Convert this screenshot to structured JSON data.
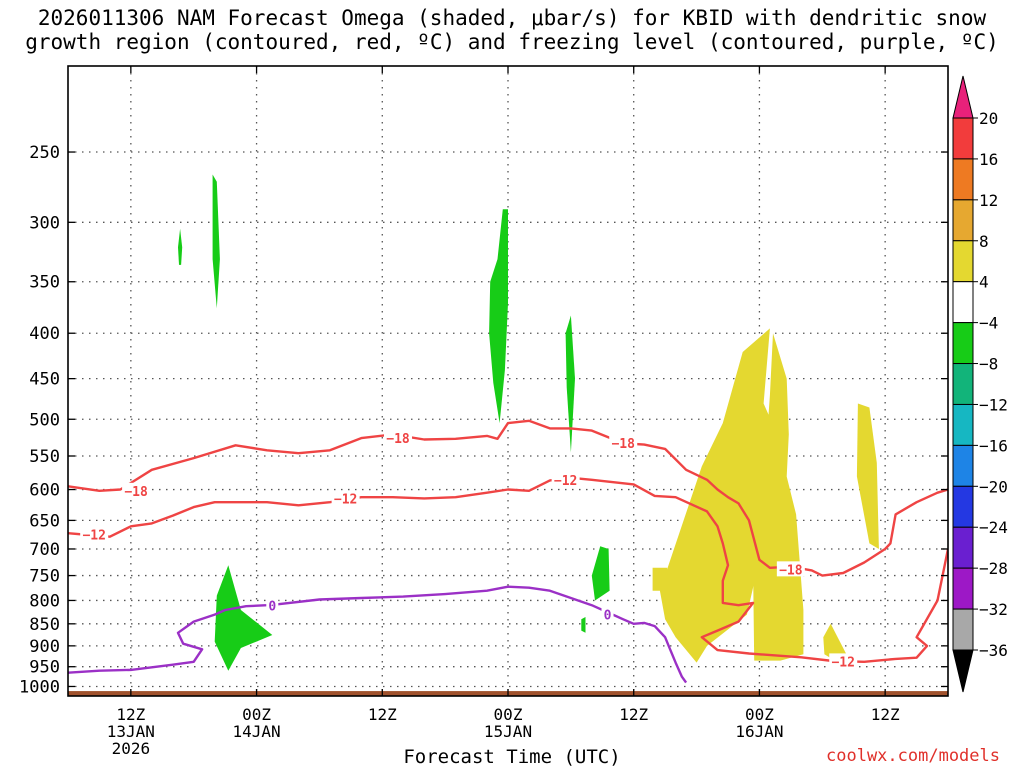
{
  "title": {
    "line1": "2026011306 NAM Forecast Omega (shaded, μbar/s) for KBID with dendritic snow",
    "line2": "growth region (contoured, red, ºC) and freezing level (contoured, purple, ºC)"
  },
  "credit": "coolwx.com/models",
  "chart_data": {
    "type": "time-height contour",
    "title": "2026011306 NAM Forecast Omega (shaded, μbar/s) for KBID with dendritic snow growth region (contoured, red, ºC) and freezing level (contoured, purple, ºC)",
    "xlabel": "Forecast Time (UTC)",
    "ylabel": "",
    "xlim": [
      0,
      84
    ],
    "ylim": [
      1025,
      200
    ],
    "y_scale": "log-pressure",
    "grid": true,
    "x_ticks": [
      {
        "hour": 6,
        "label": "12Z",
        "sub1": "13JAN",
        "sub2": "2026"
      },
      {
        "hour": 18,
        "label": "00Z",
        "sub1": "14JAN",
        "sub2": ""
      },
      {
        "hour": 30,
        "label": "12Z",
        "sub1": "",
        "sub2": ""
      },
      {
        "hour": 42,
        "label": "00Z",
        "sub1": "15JAN",
        "sub2": ""
      },
      {
        "hour": 54,
        "label": "12Z",
        "sub1": "",
        "sub2": ""
      },
      {
        "hour": 66,
        "label": "00Z",
        "sub1": "16JAN",
        "sub2": ""
      },
      {
        "hour": 78,
        "label": "12Z",
        "sub1": "",
        "sub2": ""
      }
    ],
    "y_ticks": [
      250,
      300,
      350,
      400,
      450,
      500,
      550,
      600,
      650,
      700,
      750,
      800,
      850,
      900,
      950,
      1000
    ],
    "colorbar": {
      "levels": [
        "20",
        "16",
        "12",
        "8",
        "4",
        "−4",
        "−8",
        "−12",
        "−16",
        "−20",
        "−24",
        "−28",
        "−32",
        "−36"
      ],
      "colors": [
        "#e8217a",
        "#f23c3c",
        "#ee7a22",
        "#e6a830",
        "#e4d830",
        "#ffffff",
        "#17cc17",
        "#12b47a",
        "#16b7c2",
        "#1e84e6",
        "#2438e2",
        "#6a1fd0",
        "#9d18c6",
        "#a8a8a8",
        "#000000"
      ]
    },
    "omega_regions": [
      {
        "name": "omega-4-8-a",
        "bin": "-4 to -8",
        "points": [
          [
            10.5,
            320
          ],
          [
            10.7,
            305
          ],
          [
            10.9,
            320
          ],
          [
            10.8,
            335
          ],
          [
            10.6,
            335
          ]
        ]
      },
      {
        "name": "omega-4-8-b",
        "bin": "-4 to -8",
        "points": [
          [
            13.8,
            265
          ],
          [
            14.2,
            270
          ],
          [
            14.5,
            330
          ],
          [
            14.2,
            375
          ],
          [
            13.8,
            330
          ]
        ]
      },
      {
        "name": "omega-4-8-c",
        "bin": "-4 to -8",
        "points": [
          [
            40.3,
            350
          ],
          [
            41.0,
            330
          ],
          [
            41.5,
            290
          ],
          [
            42.0,
            290
          ],
          [
            42.0,
            370
          ],
          [
            41.7,
            440
          ],
          [
            41.2,
            505
          ],
          [
            40.6,
            455
          ],
          [
            40.2,
            400
          ]
        ]
      },
      {
        "name": "omega-4-8-d",
        "bin": "-4 to -8",
        "points": [
          [
            47.5,
            400
          ],
          [
            48.0,
            382
          ],
          [
            48.4,
            450
          ],
          [
            48.0,
            545
          ],
          [
            47.6,
            460
          ]
        ]
      },
      {
        "name": "omega-4-8-e",
        "bin": "-4 to -8",
        "points": [
          [
            14.2,
            790
          ],
          [
            15.3,
            730
          ],
          [
            16.5,
            820
          ],
          [
            19.5,
            875
          ],
          [
            16.5,
            905
          ],
          [
            15.3,
            960
          ],
          [
            14.0,
            890
          ]
        ]
      },
      {
        "name": "omega-4-8-f",
        "bin": "-4 to -8",
        "points": [
          [
            50.0,
            750
          ],
          [
            50.8,
            695
          ],
          [
            51.6,
            700
          ],
          [
            51.7,
            780
          ],
          [
            50.3,
            800
          ]
        ]
      },
      {
        "name": "omega-4-8-g",
        "bin": "-4 to -8",
        "points": [
          [
            49.0,
            840
          ],
          [
            49.4,
            835
          ],
          [
            49.4,
            870
          ],
          [
            49.0,
            865
          ]
        ]
      },
      {
        "name": "omega+4-8-a",
        "bin": "4 to 8",
        "points": [
          [
            56.5,
            780
          ],
          [
            60.5,
            565
          ],
          [
            62.5,
            505
          ],
          [
            64.4,
            420
          ],
          [
            67.0,
            395
          ],
          [
            66.4,
            480
          ],
          [
            67.7,
            520
          ],
          [
            67.2,
            680
          ],
          [
            66.0,
            720
          ],
          [
            64.8,
            830
          ],
          [
            61.0,
            900
          ],
          [
            60.0,
            940
          ],
          [
            58.0,
            880
          ],
          [
            57.0,
            840
          ]
        ]
      },
      {
        "name": "omega+4-8-b",
        "bin": "4 to 8",
        "points": [
          [
            65.4,
            740
          ],
          [
            66.2,
            640
          ],
          [
            67.0,
            470
          ],
          [
            67.3,
            400
          ],
          [
            68.6,
            450
          ],
          [
            68.8,
            520
          ],
          [
            68.6,
            580
          ],
          [
            69.5,
            640
          ],
          [
            70.2,
            820
          ],
          [
            70.2,
            920
          ],
          [
            68.0,
            935
          ],
          [
            65.5,
            935
          ]
        ]
      },
      {
        "name": "omega+4-8-c",
        "bin": "4 to 8",
        "points": [
          [
            75.3,
            580
          ],
          [
            75.4,
            480
          ],
          [
            76.5,
            485
          ],
          [
            77.2,
            560
          ],
          [
            77.4,
            700
          ],
          [
            76.5,
            690
          ]
        ]
      },
      {
        "name": "omega+4-8-d",
        "bin": "4 to 8",
        "points": [
          [
            72.1,
            880
          ],
          [
            72.8,
            850
          ],
          [
            74.3,
            920
          ],
          [
            73.2,
            935
          ],
          [
            72.2,
            920
          ]
        ]
      },
      {
        "name": "omega+4-8-e",
        "bin": "4 to 8",
        "points": [
          [
            55.8,
            735
          ],
          [
            57.2,
            735
          ],
          [
            57.2,
            780
          ],
          [
            55.8,
            780
          ]
        ]
      }
    ],
    "contours": [
      {
        "name": "contour-minus18",
        "label": "−18",
        "color": "#ef4444",
        "points": [
          [
            0,
            595
          ],
          [
            3,
            602
          ],
          [
            5,
            600
          ],
          [
            8,
            570
          ],
          [
            12,
            553
          ],
          [
            16,
            535
          ],
          [
            19,
            542
          ],
          [
            22,
            546
          ],
          [
            25,
            542
          ],
          [
            28,
            525
          ],
          [
            31,
            520
          ],
          [
            34,
            527
          ],
          [
            37,
            526
          ],
          [
            40,
            522
          ],
          [
            41,
            526
          ],
          [
            42,
            505
          ],
          [
            44,
            502
          ],
          [
            46,
            512
          ],
          [
            48,
            512
          ],
          [
            50,
            515
          ],
          [
            53,
            532
          ],
          [
            55,
            534
          ],
          [
            57,
            540
          ],
          [
            59,
            570
          ],
          [
            61,
            585
          ],
          [
            62,
            600
          ],
          [
            63,
            612
          ],
          [
            64,
            622
          ],
          [
            65,
            650
          ],
          [
            66,
            720
          ],
          [
            67,
            735
          ],
          [
            69,
            733
          ],
          [
            71,
            740
          ],
          [
            72,
            750
          ],
          [
            74,
            745
          ],
          [
            76,
            725
          ],
          [
            78,
            700
          ],
          [
            78.5,
            690
          ],
          [
            79,
            640
          ],
          [
            81,
            620
          ],
          [
            83,
            605
          ],
          [
            84,
            600
          ]
        ],
        "labels": [
          [
            6.5,
            602
          ],
          [
            31.5,
            525
          ],
          [
            53,
            532
          ],
          [
            69,
            738
          ]
        ]
      },
      {
        "name": "contour-minus12",
        "label": "−12",
        "color": "#ef4444",
        "points": [
          [
            0,
            672
          ],
          [
            2,
            675
          ],
          [
            4,
            678
          ],
          [
            6,
            660
          ],
          [
            8,
            655
          ],
          [
            10,
            642
          ],
          [
            12,
            628
          ],
          [
            14,
            620
          ],
          [
            17,
            620
          ],
          [
            19,
            620
          ],
          [
            22,
            625
          ],
          [
            25,
            620
          ],
          [
            28,
            612
          ],
          [
            31,
            612
          ],
          [
            34,
            614
          ],
          [
            37,
            612
          ],
          [
            40,
            605
          ],
          [
            42,
            600
          ],
          [
            44,
            602
          ],
          [
            46,
            586
          ],
          [
            48,
            582
          ],
          [
            50,
            585
          ],
          [
            54,
            592
          ],
          [
            56,
            610
          ],
          [
            58,
            612
          ],
          [
            61,
            635
          ],
          [
            62,
            660
          ],
          [
            62.5,
            690
          ],
          [
            63,
            730
          ],
          [
            62.5,
            760
          ],
          [
            62.5,
            805
          ],
          [
            64,
            810
          ],
          [
            65.4,
            805
          ],
          [
            64,
            845
          ],
          [
            62,
            865
          ],
          [
            60.5,
            880
          ],
          [
            62,
            910
          ],
          [
            65,
            918
          ],
          [
            70,
            927
          ],
          [
            73,
            936
          ],
          [
            76,
            938
          ],
          [
            79,
            931
          ],
          [
            81,
            928
          ],
          [
            82,
            900
          ],
          [
            81,
            880
          ],
          [
            83,
            800
          ],
          [
            84,
            700
          ]
        ],
        "labels": [
          [
            2.5,
            674
          ],
          [
            26.5,
            614
          ],
          [
            47.5,
            585
          ],
          [
            74,
            937
          ]
        ]
      },
      {
        "name": "contour-freeze-0",
        "label": "0",
        "color": "#9b30c6",
        "points": [
          [
            0,
            965
          ],
          [
            3,
            960
          ],
          [
            6,
            958
          ],
          [
            10,
            945
          ],
          [
            12,
            938
          ],
          [
            12.8,
            908
          ],
          [
            11,
            895
          ],
          [
            10.5,
            870
          ],
          [
            12,
            845
          ],
          [
            14,
            830
          ],
          [
            15,
            820
          ],
          [
            17,
            812
          ],
          [
            19,
            810
          ],
          [
            20,
            808
          ],
          [
            24,
            798
          ],
          [
            28,
            795
          ],
          [
            32,
            792
          ],
          [
            36,
            787
          ],
          [
            40,
            780
          ],
          [
            42,
            772
          ],
          [
            44,
            774
          ],
          [
            46,
            780
          ],
          [
            48,
            795
          ],
          [
            50,
            810
          ],
          [
            52,
            830
          ],
          [
            53,
            840
          ],
          [
            54,
            850
          ],
          [
            55,
            848
          ],
          [
            56,
            855
          ],
          [
            57,
            880
          ],
          [
            57.5,
            910
          ],
          [
            58,
            940
          ],
          [
            58.6,
            975
          ],
          [
            59,
            990
          ]
        ],
        "labels": [
          [
            19.5,
            811
          ],
          [
            51.5,
            830
          ]
        ]
      }
    ],
    "terrain": {
      "name": "terrain",
      "color": "#a0522d",
      "surface_pressure": 1012
    }
  }
}
